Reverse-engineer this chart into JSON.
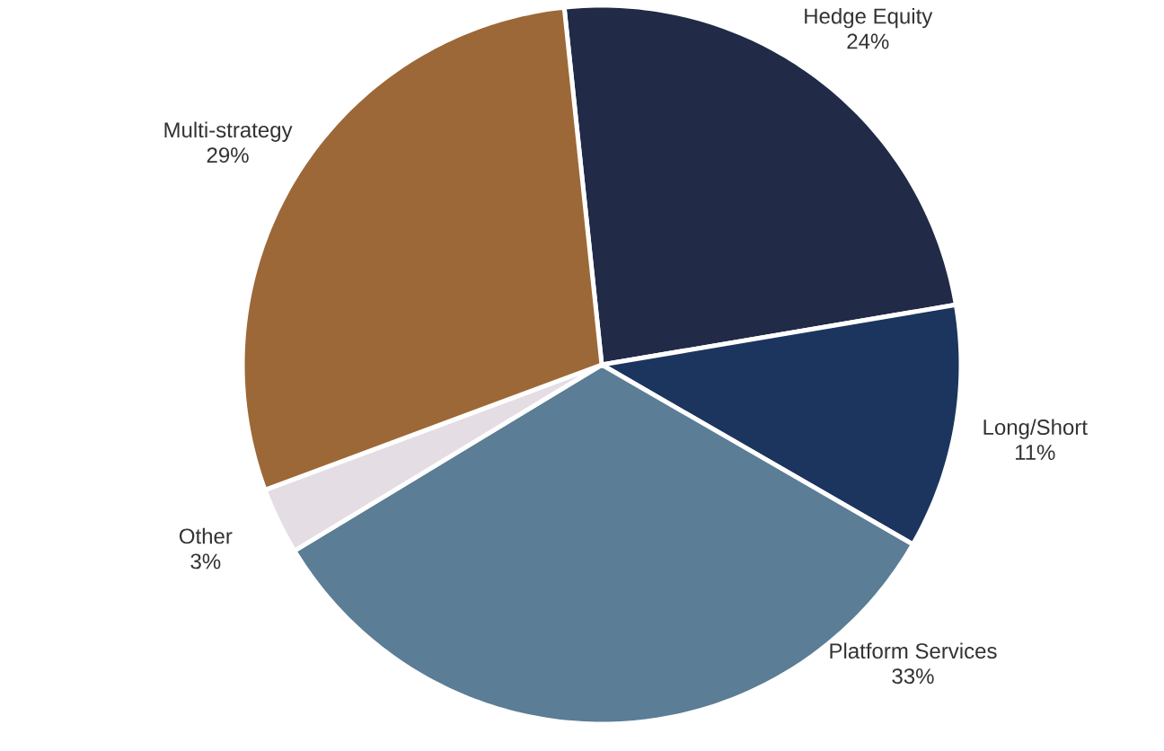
{
  "chart_data": {
    "type": "pie",
    "categories": [
      "Hedge Equity",
      "Long/Short",
      "Platform Services",
      "Other",
      "Multi-strategy"
    ],
    "values": [
      24,
      11,
      33,
      3,
      29
    ],
    "value_labels": [
      "24%",
      "11%",
      "33%",
      "3%",
      "29%"
    ],
    "colors": [
      "#212a47",
      "#1c355e",
      "#5b7d96",
      "#e4dde4",
      "#9c6838"
    ]
  }
}
